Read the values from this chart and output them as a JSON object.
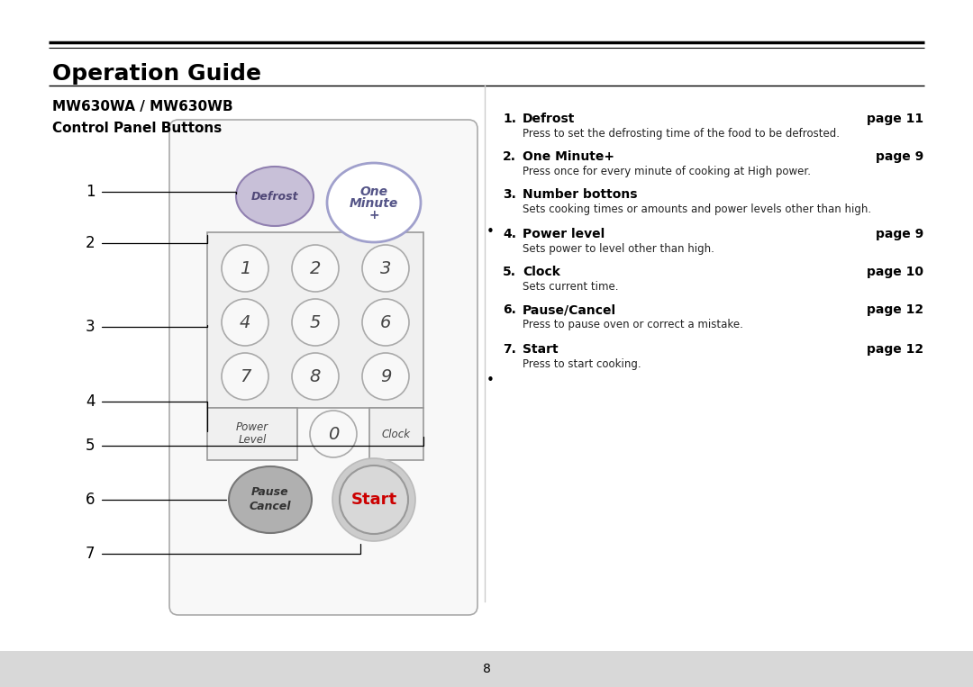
{
  "title": "Operation Guide",
  "subtitle": "MW630WA / MW630WB",
  "subtitle2": "Control Panel Buttons",
  "bg_color": "#ffffff",
  "defrost_fill": "#c8c0d8",
  "defrost_border": "#9080b0",
  "one_minute_fill": "#ffffff",
  "one_minute_border": "#a0a0cc",
  "number_btn_fill": "#f0f0f0",
  "number_btn_border": "#aaaaaa",
  "panel_fill": "#f8f8f8",
  "panel_border": "#aaaaaa",
  "kp_fill": "#f0f0f0",
  "kp_border": "#999999",
  "pause_fill": "#b0b0b0",
  "pause_border": "#888888",
  "start_outer_fill": "#cccccc",
  "start_inner_fill": "#d8d8d8",
  "start_text_color": "#cc0000",
  "footer_fill": "#d8d8d8",
  "items": [
    {
      "num": "1.",
      "label": "Defrost",
      "page": "page 11",
      "desc": "Press to set the defrosting time of the food to be defrosted."
    },
    {
      "num": "2.",
      "label": "One Minute+",
      "page": "page 9",
      "desc": "Press once for every minute of cooking at High power."
    },
    {
      "num": "3.",
      "label": "Number bottons",
      "page": "",
      "desc": "Sets cooking times or amounts and power levels other than high."
    },
    {
      "num": "4.",
      "label": "Power level",
      "page": "page 9",
      "desc": "Sets power to level other than high."
    },
    {
      "num": "5.",
      "label": "Clock",
      "page": "page 10",
      "desc": "Sets current time."
    },
    {
      "num": "6.",
      "label": "Pause/Cancel",
      "page": "page 12",
      "desc": "Press to pause oven or correct a mistake."
    },
    {
      "num": "7.",
      "label": "Start",
      "page": "page 12",
      "desc": "Press to start cooking."
    }
  ],
  "footer_text": "8"
}
